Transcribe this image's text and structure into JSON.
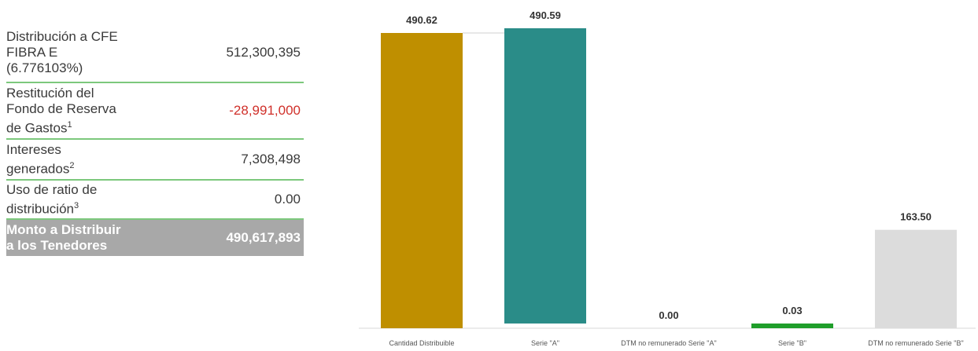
{
  "table": {
    "rows": [
      {
        "label": "Distribución a CFE\nFIBRA E\n(6.776103%)",
        "sup": "",
        "value": "512,300,395",
        "negative": false
      },
      {
        "label": "Restitución del\nFondo de Reserva\nde Gastos",
        "sup": "1",
        "value": "-28,991,000",
        "negative": true
      },
      {
        "label": "Intereses\ngenerados",
        "sup": "2",
        "value": "7,308,498",
        "negative": false
      },
      {
        "label": "Uso de ratio de\ndistribución",
        "sup": "3",
        "value": "0.00",
        "negative": false
      },
      {
        "label": "Monto a Distribuir\na los Tenedores",
        "sup": "",
        "value": "490,617,893",
        "negative": false
      }
    ]
  },
  "chart_data": {
    "type": "bar",
    "categories": [
      "Cantidad Distribuible",
      "Serie \"A\"",
      "DTM no remunerado Serie \"A\"",
      "Serie \"B\"",
      "DTM no remunerado Serie \"B\""
    ],
    "bars": [
      {
        "base": 0,
        "value": 490.62,
        "label": "490.62",
        "color": "#bf8f00"
      },
      {
        "base": 0.03,
        "value": 490.59,
        "label": "490.59",
        "color": "#2a8c88"
      },
      {
        "base": 0,
        "value": 0.0,
        "label": "0.00",
        "color": "#cfcfcf"
      },
      {
        "base": 0,
        "value": 0.03,
        "label": "0.03",
        "color": "#1f9e2a"
      },
      {
        "base": 0,
        "value": 163.5,
        "label": "163.50",
        "color": "#dcdcdc"
      }
    ],
    "ylim": [
      0,
      490.62
    ],
    "grid": false,
    "legend": "none"
  }
}
